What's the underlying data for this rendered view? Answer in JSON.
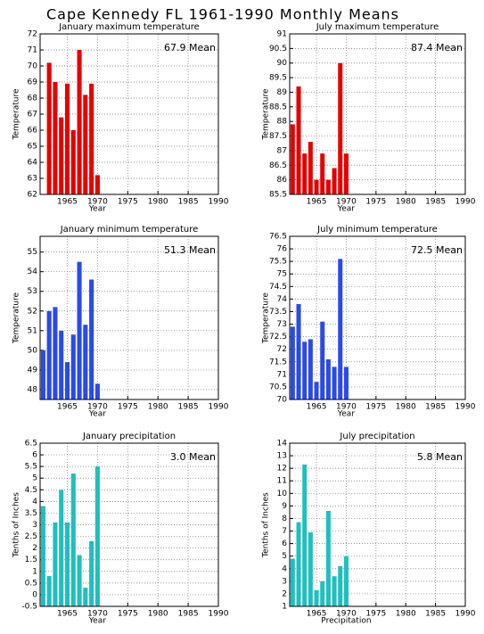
{
  "title": "Cape Kennedy FL  1961-1990 Monthly Means",
  "chart_data": [
    {
      "type": "bar",
      "title": "January maximum temperature",
      "annotation": "67.9 Mean",
      "xlabel": "Year",
      "ylabel": "Temperature",
      "color": "#e60000",
      "x": [
        1962,
        1963,
        1964,
        1965,
        1966,
        1967,
        1968,
        1969,
        1970
      ],
      "values": [
        70.2,
        69.0,
        66.8,
        68.9,
        66.0,
        71.0,
        68.2,
        68.9,
        63.2
      ],
      "xlim": [
        1960.5,
        1990
      ],
      "xticks": [
        1965,
        1970,
        1975,
        1980,
        1985,
        1990
      ],
      "ylim": [
        62,
        72
      ],
      "yticks": [
        62,
        63,
        64,
        65,
        66,
        67,
        68,
        69,
        70,
        71,
        72
      ],
      "grid": true
    },
    {
      "type": "bar",
      "title": "July maximum temperature",
      "annotation": "87.4 Mean",
      "xlabel": "Year",
      "ylabel": "Temperature",
      "color": "#e60000",
      "x": [
        1961,
        1962,
        1963,
        1964,
        1965,
        1966,
        1967,
        1968,
        1969,
        1970
      ],
      "values": [
        87.9,
        89.2,
        86.9,
        87.3,
        86.0,
        86.9,
        86.0,
        86.4,
        90.0,
        86.9
      ],
      "xlim": [
        1960.5,
        1990
      ],
      "xticks": [
        1965,
        1970,
        1975,
        1980,
        1985,
        1990
      ],
      "ylim": [
        85.5,
        91
      ],
      "yticks": [
        85.5,
        86,
        86.5,
        87,
        87.5,
        88,
        88.5,
        89,
        89.5,
        90,
        90.5,
        91
      ],
      "grid": true
    },
    {
      "type": "bar",
      "title": "January minimum temperature",
      "annotation": "51.3 Mean",
      "xlabel": "Year",
      "ylabel": "Temperature",
      "color": "#2a4ae8",
      "x": [
        1961,
        1962,
        1963,
        1964,
        1965,
        1966,
        1967,
        1968,
        1969,
        1970
      ],
      "values": [
        50.0,
        52.0,
        52.2,
        51.0,
        49.4,
        50.8,
        54.5,
        51.3,
        53.6,
        48.3
      ],
      "xlim": [
        1960.5,
        1990
      ],
      "xticks": [
        1965,
        1970,
        1975,
        1980,
        1985,
        1990
      ],
      "ylim": [
        47.5,
        55.8
      ],
      "yticks": [
        48,
        49,
        50,
        51,
        52,
        53,
        54,
        55
      ],
      "grid": true
    },
    {
      "type": "bar",
      "title": "July minimum temperature",
      "annotation": "72.5 Mean",
      "xlabel": "Year",
      "ylabel": "Temperature",
      "color": "#2a4ae8",
      "x": [
        1961,
        1962,
        1963,
        1964,
        1965,
        1966,
        1967,
        1968,
        1969,
        1970
      ],
      "values": [
        72.9,
        73.8,
        72.3,
        72.4,
        70.7,
        73.1,
        71.6,
        71.3,
        75.6,
        71.3
      ],
      "xlim": [
        1960.5,
        1990
      ],
      "xticks": [
        1965,
        1970,
        1975,
        1980,
        1985,
        1990
      ],
      "ylim": [
        70,
        76.5
      ],
      "yticks": [
        70,
        70.5,
        71,
        71.5,
        72,
        72.5,
        73,
        73.5,
        74,
        74.5,
        75,
        75.5,
        76,
        76.5
      ],
      "grid": true
    },
    {
      "type": "bar",
      "title": "January precipitation",
      "annotation": "3.0 Mean",
      "xlabel": "Year",
      "ylabel": "Tenths of Inches",
      "color": "#1fbfbf",
      "x": [
        1961,
        1962,
        1963,
        1964,
        1965,
        1966,
        1967,
        1968,
        1969,
        1970
      ],
      "values": [
        3.8,
        0.8,
        3.1,
        4.5,
        3.1,
        5.2,
        1.7,
        0.3,
        2.3,
        5.5
      ],
      "xlim": [
        1960.5,
        1990
      ],
      "xticks": [
        1965,
        1970,
        1975,
        1980,
        1985,
        1990
      ],
      "ylim": [
        -0.5,
        6.5
      ],
      "yticks": [
        -0.5,
        0,
        0.5,
        1,
        1.5,
        2,
        2.5,
        3,
        3.5,
        4,
        4.5,
        5,
        5.5,
        6,
        6.5
      ],
      "grid": true
    },
    {
      "type": "bar",
      "title": "July precipitation",
      "annotation": "5.8 Mean",
      "xlabel": "Precipitation",
      "ylabel": "Tenths of Inches",
      "color": "#1fbfbf",
      "x": [
        1961,
        1962,
        1963,
        1964,
        1965,
        1966,
        1967,
        1968,
        1969,
        1970
      ],
      "values": [
        4.8,
        7.7,
        12.3,
        6.9,
        2.3,
        3.0,
        8.6,
        3.4,
        4.2,
        5.0
      ],
      "xlim": [
        1960.5,
        1990
      ],
      "xticks": [
        1965,
        1970,
        1975,
        1980,
        1985,
        1990
      ],
      "ylim": [
        1,
        14
      ],
      "yticks": [
        1,
        2,
        3,
        4,
        5,
        6,
        7,
        8,
        9,
        10,
        11,
        12,
        13,
        14
      ],
      "grid": true
    }
  ]
}
